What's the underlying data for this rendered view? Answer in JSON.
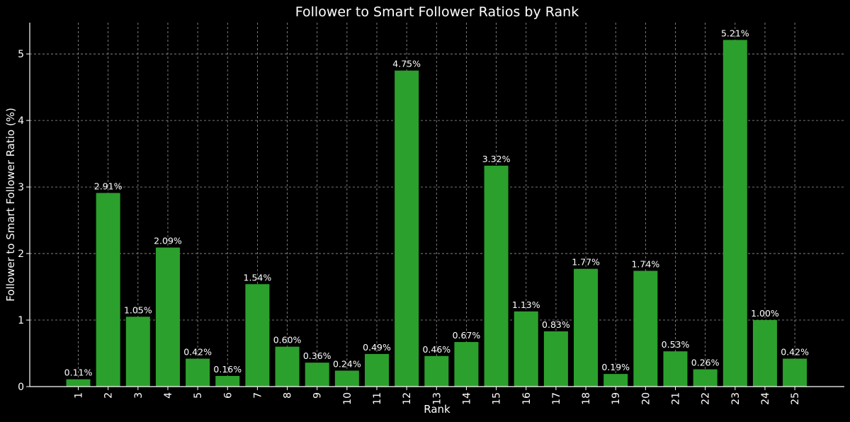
{
  "chart_data": {
    "type": "bar",
    "title": "Follower to Smart Follower Ratios by Rank",
    "xlabel": "Rank",
    "ylabel": "Follower to Smart Follower Ratio (%)",
    "categories": [
      "1",
      "2",
      "3",
      "4",
      "5",
      "6",
      "7",
      "8",
      "9",
      "10",
      "11",
      "12",
      "13",
      "14",
      "15",
      "16",
      "17",
      "18",
      "19",
      "20",
      "21",
      "22",
      "23",
      "24",
      "25"
    ],
    "values": [
      0.11,
      2.91,
      1.05,
      2.09,
      0.42,
      0.16,
      1.54,
      0.6,
      0.36,
      0.24,
      0.49,
      4.75,
      0.46,
      0.67,
      3.32,
      1.13,
      0.83,
      1.77,
      0.19,
      1.74,
      0.53,
      0.26,
      5.21,
      1.0,
      0.42
    ],
    "data_labels": [
      "0.11%",
      "2.91%",
      "1.05%",
      "2.09%",
      "0.42%",
      "0.16%",
      "1.54%",
      "0.60%",
      "0.36%",
      "0.24%",
      "0.49%",
      "4.75%",
      "0.46%",
      "0.67%",
      "3.32%",
      "1.13%",
      "0.83%",
      "1.77%",
      "0.19%",
      "1.74%",
      "0.53%",
      "0.26%",
      "5.21%",
      "1.00%",
      "0.42%"
    ],
    "yticks": [
      0,
      1,
      2,
      3,
      4,
      5
    ],
    "ylim": [
      0,
      5.47
    ],
    "grid": true,
    "bar_color": "#2ca02c",
    "background_color": "#000000",
    "text_color": "#ffffff"
  }
}
